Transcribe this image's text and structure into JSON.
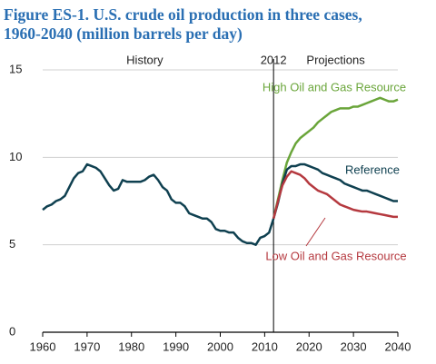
{
  "chart_data": {
    "type": "line",
    "title": "Figure ES-1. U.S. crude oil production in three cases,",
    "subtitle": "1960-2040 (million barrels per day)",
    "annotations": [
      "History",
      "2012",
      "Projections"
    ],
    "divider_x": 2012,
    "x": [
      1960,
      1961,
      1962,
      1963,
      1964,
      1965,
      1966,
      1967,
      1968,
      1969,
      1970,
      1971,
      1972,
      1973,
      1974,
      1975,
      1976,
      1977,
      1978,
      1979,
      1980,
      1981,
      1982,
      1983,
      1984,
      1985,
      1986,
      1987,
      1988,
      1989,
      1990,
      1991,
      1992,
      1993,
      1994,
      1995,
      1996,
      1997,
      1998,
      1999,
      2000,
      2001,
      2002,
      2003,
      2004,
      2005,
      2006,
      2007,
      2008,
      2009,
      2010,
      2011,
      2012,
      2013,
      2014,
      2015,
      2016,
      2017,
      2018,
      2019,
      2020,
      2021,
      2022,
      2023,
      2024,
      2025,
      2026,
      2027,
      2028,
      2029,
      2030,
      2031,
      2032,
      2033,
      2034,
      2035,
      2036,
      2037,
      2038,
      2039,
      2040
    ],
    "series": [
      {
        "name": "High Oil and Gas Resource",
        "color": "#6aa53a",
        "values": [
          null,
          null,
          null,
          null,
          null,
          null,
          null,
          null,
          null,
          null,
          null,
          null,
          null,
          null,
          null,
          null,
          null,
          null,
          null,
          null,
          null,
          null,
          null,
          null,
          null,
          null,
          null,
          null,
          null,
          null,
          null,
          null,
          null,
          null,
          null,
          null,
          null,
          null,
          null,
          null,
          null,
          null,
          null,
          null,
          null,
          null,
          null,
          null,
          null,
          null,
          null,
          null,
          6.5,
          7.6,
          8.7,
          9.7,
          10.3,
          10.8,
          11.1,
          11.3,
          11.5,
          11.7,
          12.0,
          12.2,
          12.4,
          12.6,
          12.7,
          12.8,
          12.8,
          12.8,
          12.9,
          12.9,
          13.0,
          13.1,
          13.2,
          13.3,
          13.4,
          13.3,
          13.2,
          13.2,
          13.3
        ]
      },
      {
        "name": "Reference",
        "color": "#0f4050",
        "values": [
          7.0,
          7.2,
          7.3,
          7.5,
          7.6,
          7.8,
          8.3,
          8.8,
          9.1,
          9.2,
          9.6,
          9.5,
          9.4,
          9.2,
          8.8,
          8.4,
          8.1,
          8.2,
          8.7,
          8.6,
          8.6,
          8.6,
          8.6,
          8.7,
          8.9,
          9.0,
          8.7,
          8.3,
          8.1,
          7.6,
          7.4,
          7.4,
          7.2,
          6.8,
          6.7,
          6.6,
          6.5,
          6.5,
          6.3,
          5.9,
          5.8,
          5.8,
          5.7,
          5.7,
          5.4,
          5.2,
          5.1,
          5.1,
          5.0,
          5.4,
          5.5,
          5.7,
          6.5,
          7.4,
          8.5,
          9.3,
          9.5,
          9.5,
          9.6,
          9.6,
          9.5,
          9.4,
          9.3,
          9.1,
          9.0,
          8.9,
          8.8,
          8.7,
          8.5,
          8.4,
          8.3,
          8.2,
          8.1,
          8.1,
          8.0,
          7.9,
          7.8,
          7.7,
          7.6,
          7.5,
          7.5
        ]
      },
      {
        "name": "Low Oil and Gas Resource",
        "color": "#b5393f",
        "values": [
          null,
          null,
          null,
          null,
          null,
          null,
          null,
          null,
          null,
          null,
          null,
          null,
          null,
          null,
          null,
          null,
          null,
          null,
          null,
          null,
          null,
          null,
          null,
          null,
          null,
          null,
          null,
          null,
          null,
          null,
          null,
          null,
          null,
          null,
          null,
          null,
          null,
          null,
          null,
          null,
          null,
          null,
          null,
          null,
          null,
          null,
          null,
          null,
          null,
          null,
          null,
          null,
          6.5,
          7.5,
          8.4,
          8.9,
          9.2,
          9.1,
          9.0,
          8.8,
          8.5,
          8.3,
          8.1,
          8.0,
          7.9,
          7.7,
          7.5,
          7.3,
          7.2,
          7.1,
          7.0,
          6.95,
          6.9,
          6.9,
          6.85,
          6.8,
          6.75,
          6.7,
          6.65,
          6.6,
          6.6
        ]
      }
    ],
    "xlim": [
      1960,
      2040
    ],
    "xticks": [
      1960,
      1970,
      1980,
      1990,
      2000,
      2010,
      2020,
      2030,
      2040
    ],
    "ylim": [
      0,
      15
    ],
    "yticks": [
      0,
      5,
      10,
      15
    ],
    "grid": true
  }
}
